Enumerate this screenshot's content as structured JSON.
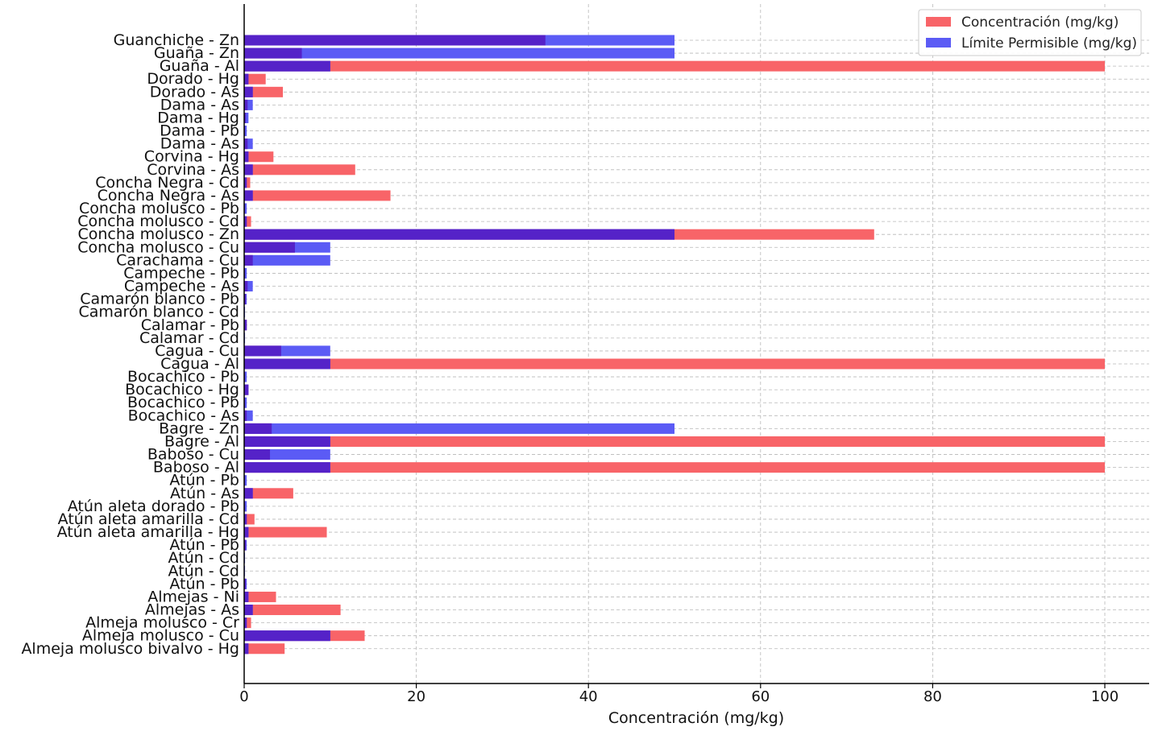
{
  "chart_data": {
    "type": "bar",
    "orientation": "horizontal",
    "xlabel": "Concentración (mg/kg)",
    "ylabel": "",
    "title": "",
    "xlim": [
      0,
      105
    ],
    "xticks": [
      0,
      20,
      40,
      60,
      80,
      100
    ],
    "grid": true,
    "legend_position": "top-right",
    "categories": [
      "Guanchiche - Zn",
      "Guaña - Zn",
      "Guaña - Al",
      "Dorado - Hg",
      "Dorado - As",
      "Dama - As",
      "Dama - Hg",
      "Dama - Pb",
      "Dama - As",
      "Corvina - Hg",
      "Corvina - As",
      "Concha Negra - Cd",
      "Concha Negra - As",
      "Concha molusco - Pb",
      "Concha molusco - Cd",
      "Concha molusco - Zn",
      "Concha molusco - Cu",
      "Carachama - Cu",
      "Campeche - Pb",
      "Campeche - As",
      "Camarón blanco - Pb",
      "Camarón blanco - Cd",
      "Calamar - Pb",
      "Calamar - Cd",
      "Cagua - Cu",
      "Cagua - Al",
      "Bocachico - Pb",
      "Bocachico - Hg",
      "Bocachico - Pb",
      "Bocachico - As",
      "Bagre - Zn",
      "Bagre - Al",
      "Baboso - Cu",
      "Baboso - Al",
      "Atún - Pb",
      "Atún - As",
      "Atún aleta dorado - Pb",
      "Atún aleta amarilla - Cd",
      "Atún aleta amarilla - Hg",
      "Atún - Pb",
      "Atún - Cd",
      "Atún - Cd",
      "Atún - Pb",
      "Almejas - Ni",
      "Almejas - As",
      "Almeja molusco - Cr",
      "Almeja molusco - Cu",
      "Almeja molusco bivalvo - Hg"
    ],
    "series": [
      {
        "name": "Concentración (mg/kg)",
        "color": "#f86468",
        "values": [
          35,
          6.7,
          100,
          2.5,
          4.5,
          0.4,
          0.2,
          0.1,
          0.4,
          3.4,
          12.9,
          0.7,
          17.0,
          0.1,
          0.8,
          73.2,
          5.9,
          1.0,
          0.1,
          0.4,
          0.2,
          0.05,
          0.3,
          0.05,
          4.3,
          100,
          0.1,
          0.5,
          0.1,
          0.3,
          3.2,
          100,
          3.0,
          100,
          0.1,
          5.7,
          0.1,
          1.2,
          9.6,
          0.2,
          0.05,
          0.05,
          0.2,
          3.7,
          11.2,
          0.8,
          14.0,
          4.7
        ]
      },
      {
        "name": "Límite Permisible (mg/kg)",
        "color": "#5b5bf5",
        "overlap_color": "#5522c8",
        "values": [
          50,
          50,
          10,
          0.5,
          1,
          1,
          0.5,
          0.3,
          1,
          0.5,
          1,
          0.3,
          1,
          0.3,
          0.3,
          50,
          10,
          10,
          0.3,
          1,
          0.3,
          0.1,
          0.3,
          0.1,
          10,
          10,
          0.3,
          0.5,
          0.3,
          1,
          50,
          10,
          10,
          10,
          0.3,
          1,
          0.3,
          0.3,
          0.5,
          0.3,
          0.1,
          0.1,
          0.3,
          0.5,
          1,
          0.3,
          10,
          0.5
        ]
      }
    ]
  }
}
